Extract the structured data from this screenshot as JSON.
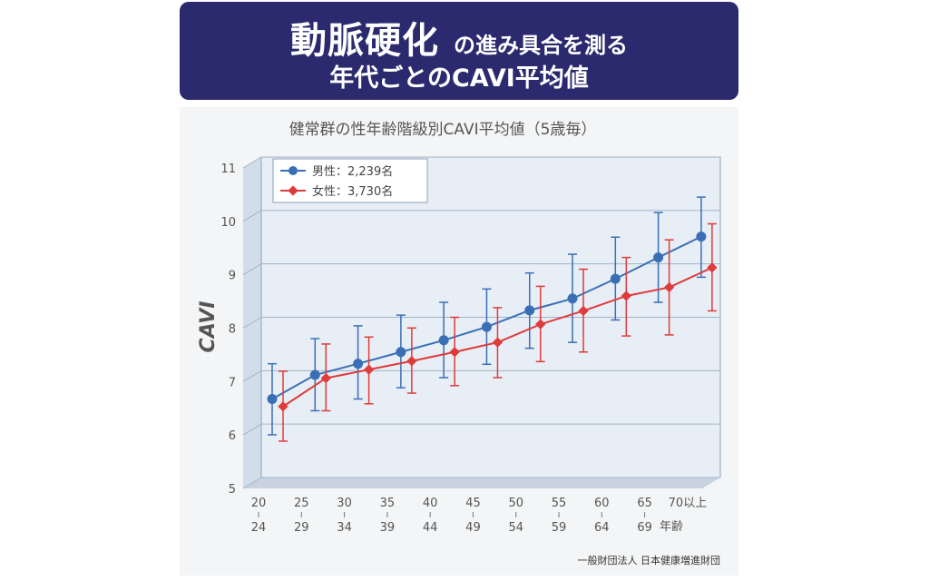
{
  "banner": {
    "title_big": "動脈硬化",
    "title_small": "の進み具合を測る",
    "subtitle": "年代ごとのCAVI平均値"
  },
  "colors": {
    "banner_bg": "#2b2a6e",
    "male": "#3a6fb6",
    "female": "#e03b3b",
    "grid": "#9fb4c8",
    "plot_bg": "#e7eef6"
  },
  "chart_data": {
    "type": "line",
    "title": "健常群の性年齢階級別CAVI平均値（5歳毎）",
    "ylabel": "CAVI",
    "xlabel": "年齢",
    "ylim": [
      5,
      11
    ],
    "yticks": [
      5,
      6,
      7,
      8,
      9,
      10,
      11
    ],
    "grid": true,
    "error_bars": true,
    "legend_position": "top-left",
    "categories": [
      {
        "top": "20",
        "bottom": "24"
      },
      {
        "top": "25",
        "bottom": "29"
      },
      {
        "top": "30",
        "bottom": "34"
      },
      {
        "top": "35",
        "bottom": "39"
      },
      {
        "top": "40",
        "bottom": "44"
      },
      {
        "top": "45",
        "bottom": "49"
      },
      {
        "top": "50",
        "bottom": "54"
      },
      {
        "top": "55",
        "bottom": "59"
      },
      {
        "top": "60",
        "bottom": "64"
      },
      {
        "top": "65",
        "bottom": "69"
      },
      {
        "top": "70以上",
        "bottom": ""
      }
    ],
    "series": [
      {
        "name": "男性：2,239名",
        "values": [
          6.47,
          6.92,
          7.13,
          7.35,
          7.57,
          7.82,
          8.13,
          8.35,
          8.72,
          9.12,
          9.51
        ],
        "error_low": [
          5.8,
          6.25,
          6.47,
          6.68,
          6.87,
          7.12,
          7.42,
          7.53,
          7.95,
          8.28,
          8.75
        ],
        "error_high": [
          7.13,
          7.6,
          7.84,
          8.04,
          8.28,
          8.53,
          8.83,
          9.18,
          9.5,
          9.96,
          10.25
        ]
      },
      {
        "name": "女性：3,730名",
        "values": [
          6.33,
          6.86,
          7.02,
          7.18,
          7.35,
          7.53,
          7.87,
          8.12,
          8.4,
          8.56,
          8.93
        ],
        "error_low": [
          5.68,
          6.25,
          6.38,
          6.58,
          6.72,
          6.87,
          7.17,
          7.35,
          7.65,
          7.67,
          8.12
        ],
        "error_high": [
          6.99,
          7.5,
          7.63,
          7.8,
          8.0,
          8.18,
          8.58,
          8.9,
          9.12,
          9.45,
          9.75
        ]
      }
    ],
    "source": "一般財団法人 日本健康増進財団"
  }
}
